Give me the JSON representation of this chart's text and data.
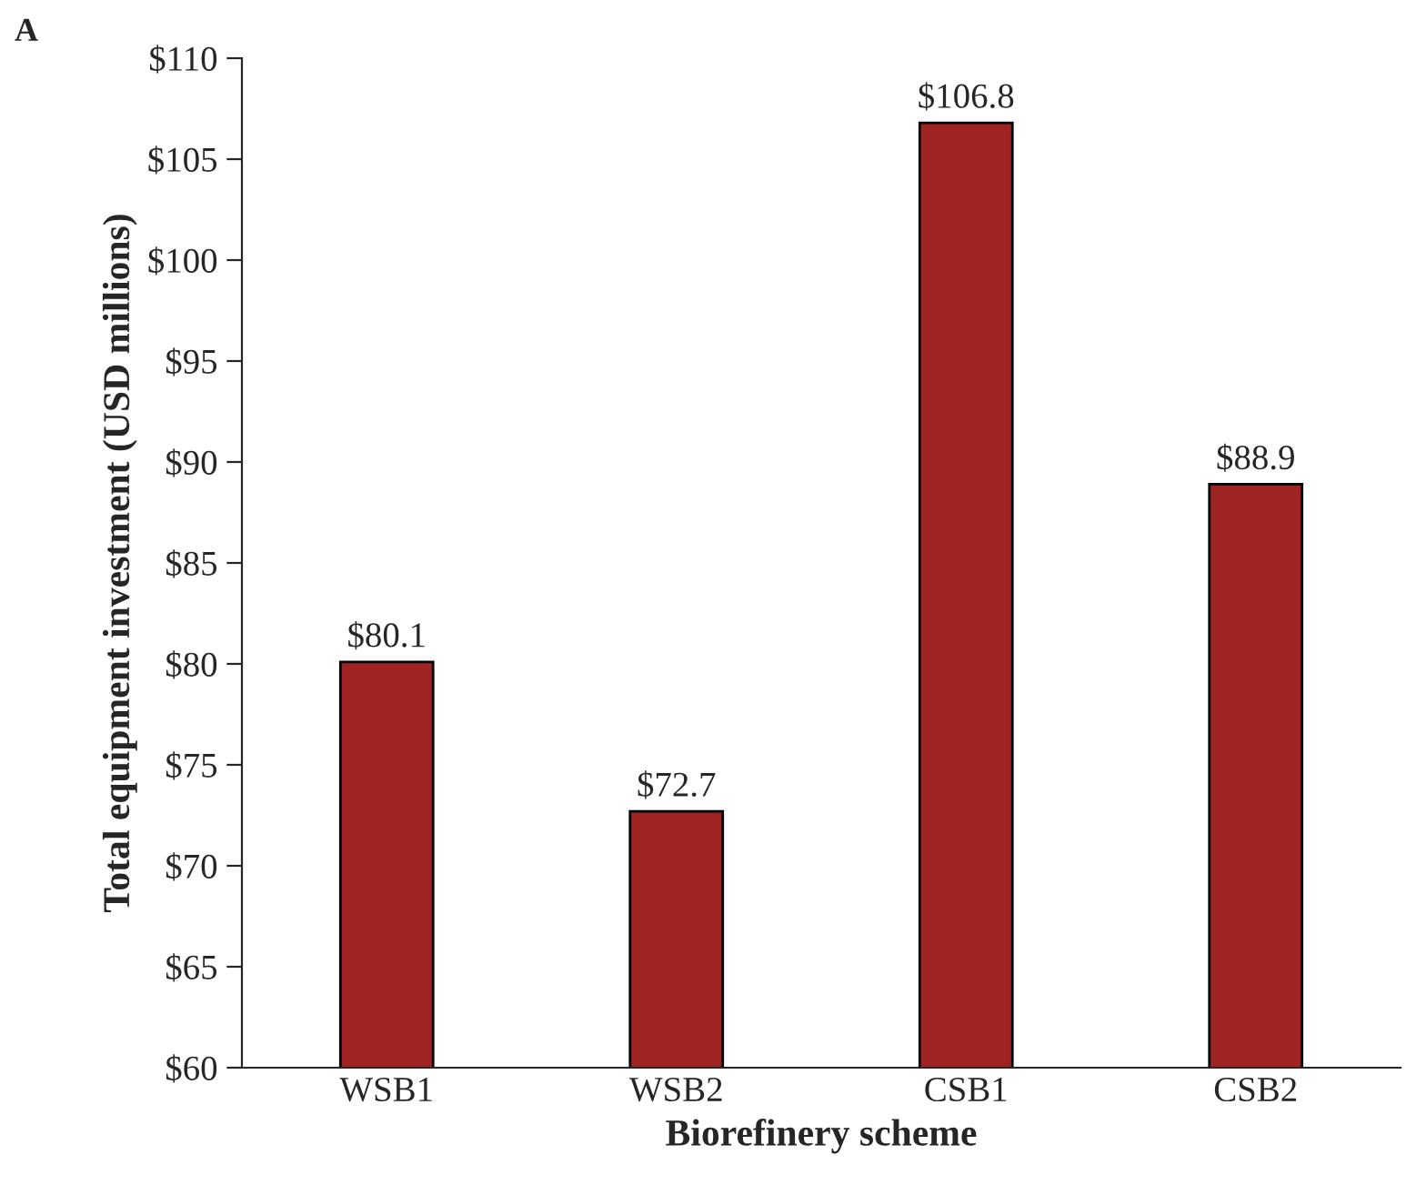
{
  "chart_data": {
    "type": "bar",
    "xlabel": "Biorefinery scheme",
    "ylabel": "Total equipment investment (USD millions)",
    "categories": [
      "WSB1",
      "WSB2",
      "CSB1",
      "CSB2"
    ],
    "values": [
      80.1,
      72.7,
      106.8,
      88.9
    ],
    "value_labels": [
      "$80.1",
      "$72.7",
      "$106.8",
      "$88.9"
    ],
    "color": "#a02323",
    "ylim": [
      60,
      110
    ],
    "yticks": [
      {
        "value": 60,
        "label": "$60"
      },
      {
        "value": 65,
        "label": "$65"
      },
      {
        "value": 70,
        "label": "$70"
      },
      {
        "value": 75,
        "label": "$75"
      },
      {
        "value": 80,
        "label": "$80"
      },
      {
        "value": 85,
        "label": "$85"
      },
      {
        "value": 90,
        "label": "$90"
      },
      {
        "value": 95,
        "label": "$95"
      },
      {
        "value": 100,
        "label": "$100"
      },
      {
        "value": 105,
        "label": "$105"
      },
      {
        "value": 110,
        "label": "$110"
      }
    ],
    "annotations": [
      "A"
    ],
    "grid": false,
    "legend": false
  }
}
